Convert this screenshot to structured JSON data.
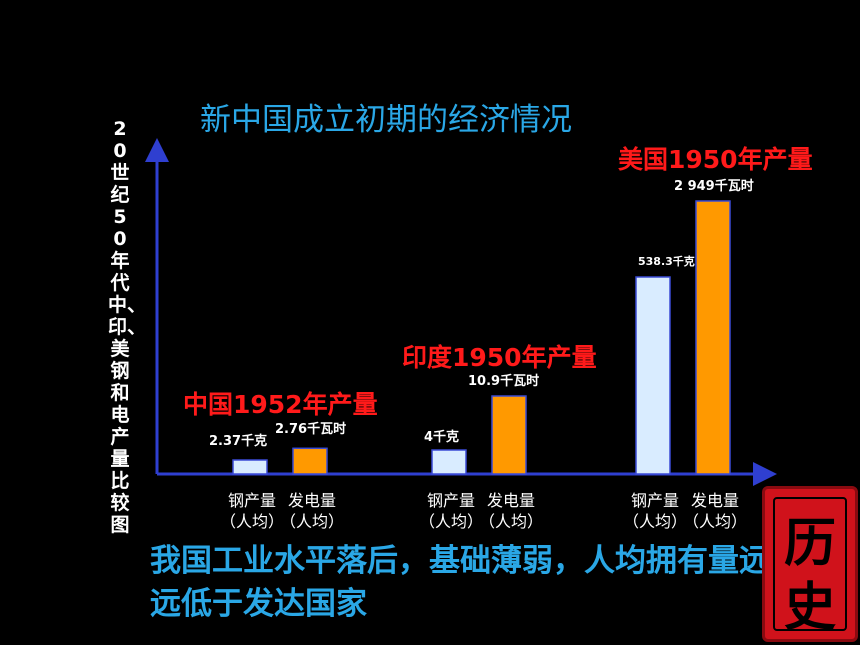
{
  "title": "新中国成立初期的经济情况",
  "conclusion": "我国工业水平落后，基础薄弱，人均拥有量远远低于发达国家",
  "seal_text": [
    "历",
    "史"
  ],
  "colors": {
    "steel": "#d9ecff",
    "power": "#ff9900",
    "axis": "#2f3fd0",
    "title": "#2aa7e6",
    "group_title": "#ff1a1a"
  },
  "chart_data": {
    "type": "bar",
    "ylabel": "20世纪50年代中、印、美钢和电产量比较图",
    "groups": [
      {
        "title": "中国1952年产量",
        "bars": [
          {
            "category": [
              "钢产量",
              "（人均）"
            ],
            "value": 2.37,
            "label": "2.37千克"
          },
          {
            "category": [
              "发电量",
              "（人均）"
            ],
            "value": 2.76,
            "label": "2.76千瓦时"
          }
        ]
      },
      {
        "title": "印度1950年产量",
        "bars": [
          {
            "category": [
              "钢产量",
              "（人均）"
            ],
            "value": 4,
            "label": "4千克"
          },
          {
            "category": [
              "发电量",
              "（人均）"
            ],
            "value": 10.9,
            "label": "10.9千瓦时"
          }
        ]
      },
      {
        "title": "美国1950年产量",
        "bars": [
          {
            "category": [
              "钢产量",
              "（人均）"
            ],
            "value": 538.3,
            "label": "538.3千克"
          },
          {
            "category": [
              "发电量",
              "（人均）"
            ],
            "value": 2949,
            "label": "2 949千瓦时"
          }
        ]
      }
    ]
  }
}
